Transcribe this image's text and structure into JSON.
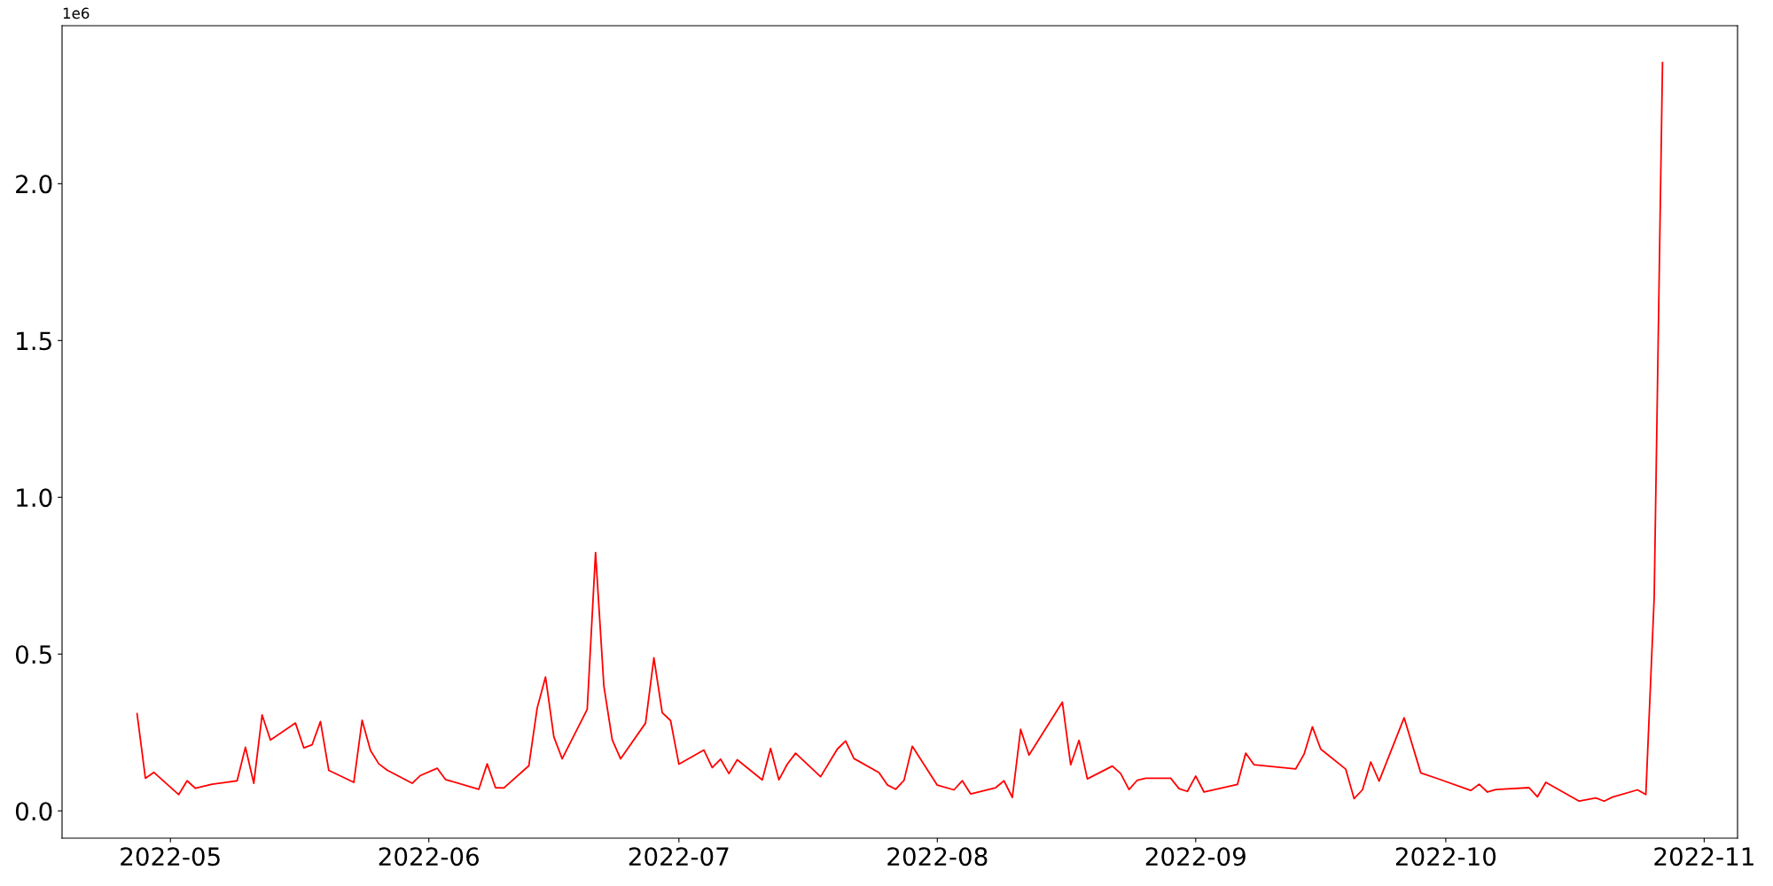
{
  "chart_data": {
    "type": "line",
    "x": [
      "2022-04-27",
      "2022-04-28",
      "2022-04-29",
      "2022-05-02",
      "2022-05-03",
      "2022-05-04",
      "2022-05-06",
      "2022-05-09",
      "2022-05-10",
      "2022-05-11",
      "2022-05-12",
      "2022-05-13",
      "2022-05-16",
      "2022-05-17",
      "2022-05-18",
      "2022-05-19",
      "2022-05-20",
      "2022-05-23",
      "2022-05-24",
      "2022-05-25",
      "2022-05-26",
      "2022-05-27",
      "2022-05-30",
      "2022-05-31",
      "2022-06-02",
      "2022-06-03",
      "2022-06-07",
      "2022-06-08",
      "2022-06-09",
      "2022-06-10",
      "2022-06-13",
      "2022-06-14",
      "2022-06-15",
      "2022-06-16",
      "2022-06-17",
      "2022-06-20",
      "2022-06-21",
      "2022-06-22",
      "2022-06-23",
      "2022-06-24",
      "2022-06-27",
      "2022-06-28",
      "2022-06-29",
      "2022-06-30",
      "2022-07-01",
      "2022-07-04",
      "2022-07-05",
      "2022-07-06",
      "2022-07-07",
      "2022-07-08",
      "2022-07-11",
      "2022-07-12",
      "2022-07-13",
      "2022-07-14",
      "2022-07-15",
      "2022-07-18",
      "2022-07-20",
      "2022-07-21",
      "2022-07-22",
      "2022-07-25",
      "2022-07-26",
      "2022-07-27",
      "2022-07-28",
      "2022-07-29",
      "2022-08-01",
      "2022-08-03",
      "2022-08-04",
      "2022-08-05",
      "2022-08-08",
      "2022-08-09",
      "2022-08-10",
      "2022-08-11",
      "2022-08-12",
      "2022-08-16",
      "2022-08-17",
      "2022-08-18",
      "2022-08-19",
      "2022-08-22",
      "2022-08-23",
      "2022-08-24",
      "2022-08-25",
      "2022-08-26",
      "2022-08-29",
      "2022-08-30",
      "2022-08-31",
      "2022-09-01",
      "2022-09-02",
      "2022-09-06",
      "2022-09-07",
      "2022-09-08",
      "2022-09-13",
      "2022-09-14",
      "2022-09-15",
      "2022-09-16",
      "2022-09-19",
      "2022-09-20",
      "2022-09-21",
      "2022-09-22",
      "2022-09-23",
      "2022-09-26",
      "2022-09-28",
      "2022-09-30",
      "2022-10-04",
      "2022-10-05",
      "2022-10-06",
      "2022-10-07",
      "2022-10-11",
      "2022-10-12",
      "2022-10-13",
      "2022-10-17",
      "2022-10-19",
      "2022-10-20",
      "2022-10-21",
      "2022-10-24",
      "2022-10-25",
      "2022-10-26",
      "2022-10-27"
    ],
    "series": [
      {
        "color": "#ff0000",
        "values": [
          0.31,
          0.104,
          0.123,
          0.052,
          0.096,
          0.072,
          0.085,
          0.096,
          0.203,
          0.088,
          0.306,
          0.226,
          0.28,
          0.201,
          0.211,
          0.285,
          0.129,
          0.091,
          0.289,
          0.193,
          0.15,
          0.13,
          0.088,
          0.113,
          0.136,
          0.1,
          0.069,
          0.15,
          0.074,
          0.073,
          0.144,
          0.328,
          0.427,
          0.236,
          0.166,
          0.324,
          0.824,
          0.398,
          0.227,
          0.166,
          0.28,
          0.488,
          0.313,
          0.288,
          0.149,
          0.194,
          0.138,
          0.165,
          0.119,
          0.163,
          0.099,
          0.199,
          0.099,
          0.149,
          0.184,
          0.109,
          0.197,
          0.223,
          0.167,
          0.122,
          0.083,
          0.069,
          0.097,
          0.206,
          0.082,
          0.067,
          0.096,
          0.054,
          0.074,
          0.096,
          0.043,
          0.26,
          0.178,
          0.347,
          0.147,
          0.225,
          0.102,
          0.143,
          0.119,
          0.068,
          0.098,
          0.104,
          0.104,
          0.071,
          0.062,
          0.111,
          0.06,
          0.084,
          0.184,
          0.147,
          0.134,
          0.181,
          0.268,
          0.197,
          0.133,
          0.039,
          0.067,
          0.156,
          0.095,
          0.297,
          0.121,
          0.103,
          0.065,
          0.085,
          0.06,
          0.068,
          0.074,
          0.045,
          0.091,
          0.031,
          0.041,
          0.031,
          0.044,
          0.067,
          0.052,
          0.68,
          2.386
        ]
      }
    ],
    "xlim": [
      "2022-04-18",
      "2022-11-05"
    ],
    "xticks": [
      {
        "value": "2022-05-01",
        "label": "2022-05"
      },
      {
        "value": "2022-06-01",
        "label": "2022-06"
      },
      {
        "value": "2022-07-01",
        "label": "2022-07"
      },
      {
        "value": "2022-08-01",
        "label": "2022-08"
      },
      {
        "value": "2022-09-01",
        "label": "2022-09"
      },
      {
        "value": "2022-10-01",
        "label": "2022-10"
      },
      {
        "value": "2022-11-01",
        "label": "2022-11"
      }
    ],
    "ylim": [
      -0.087,
      2.504
    ],
    "yticks": [
      {
        "value": 0,
        "label": "0.0"
      },
      0.5,
      {
        "value": 1,
        "label": "1.0"
      },
      1.5,
      {
        "value": 2,
        "label": "2.0"
      }
    ],
    "annotations": [
      "1e6"
    ],
    "grid": false,
    "marker": "none",
    "line_style": "solid"
  }
}
